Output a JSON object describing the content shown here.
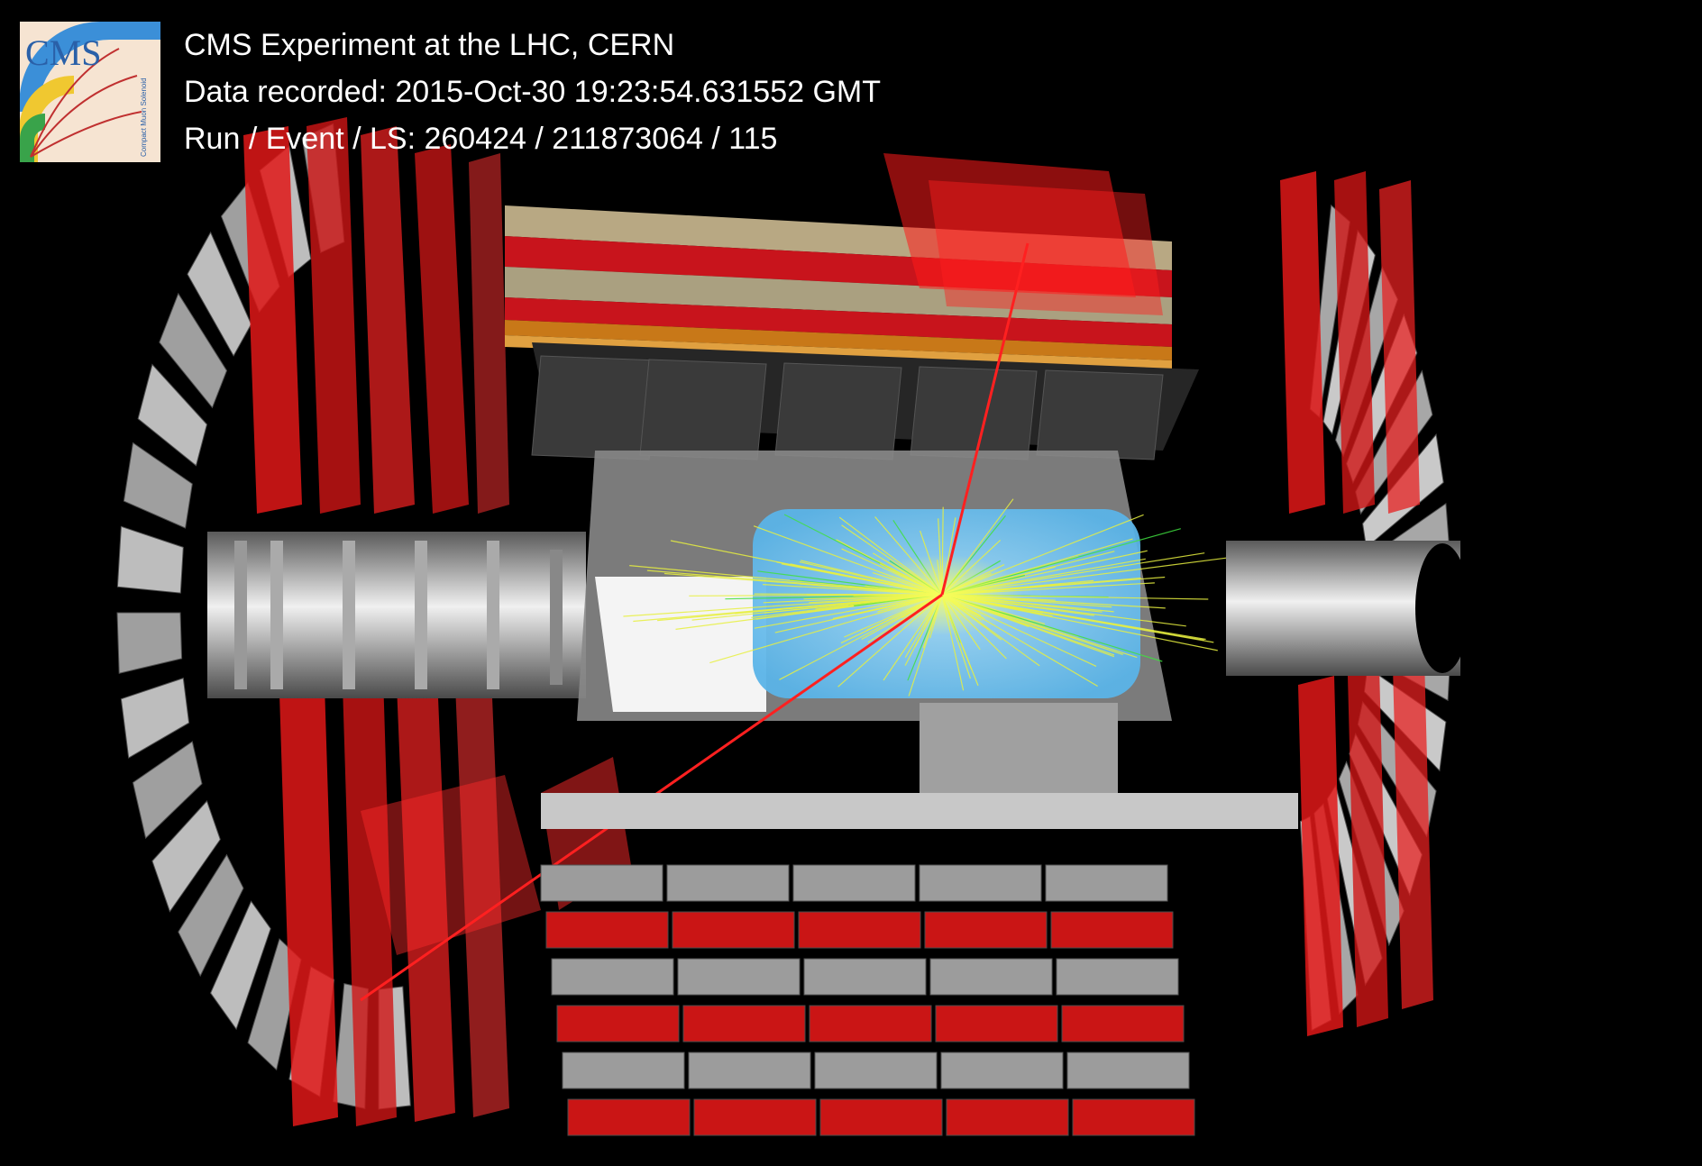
{
  "header": {
    "line1": "CMS Experiment at the LHC, CERN",
    "line2": "Data recorded: 2015-Oct-30 19:23:54.631552 GMT",
    "line3": "Run / Event / LS: 260424 / 211873064 / 115"
  },
  "logo": {
    "text": "CMS",
    "subtext": "Compact Muon Solenoid"
  },
  "colors": {
    "background": "#000000",
    "muon_chamber_red": "#e01818",
    "return_yoke_gray": "#b8b8b8",
    "ecal_cyan": "#7cc8f0",
    "tracks_yellow": "#e8f040",
    "tracks_green": "#40e040",
    "hcal_orange": "#c87818",
    "text": "#ffffff"
  }
}
